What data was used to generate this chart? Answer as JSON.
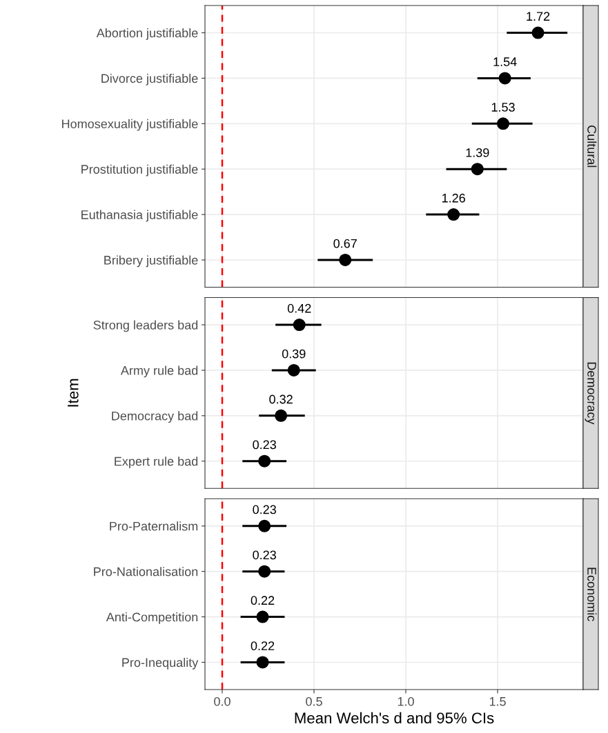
{
  "chart_data": [
    {
      "type": "scatter",
      "title": "Cultural",
      "orientation": "horizontal",
      "categories": [
        "Abortion justifiable",
        "Divorce justifiable",
        "Homosexuality justifiable",
        "Prostitution justifiable",
        "Euthanasia justifiable",
        "Bribery justifiable"
      ],
      "values": [
        1.72,
        1.54,
        1.53,
        1.39,
        1.26,
        0.67
      ],
      "errors": [
        [
          1.55,
          1.88
        ],
        [
          1.39,
          1.68
        ],
        [
          1.36,
          1.69
        ],
        [
          1.22,
          1.55
        ],
        [
          1.11,
          1.4
        ],
        [
          0.52,
          0.82
        ]
      ],
      "colors": [
        "#000000",
        "#000000",
        "#000000",
        "#000000",
        "#000000",
        "#000000"
      ],
      "data_labels": true,
      "marker": "circle",
      "xlim": [
        -0.094,
        1.966
      ],
      "tick_labels": "y",
      "grid": true,
      "ref_lines": [
        {
          "axis": "x",
          "value": 0,
          "color": "#ff0000",
          "line_style": "dashed"
        }
      ]
    },
    {
      "type": "scatter",
      "title": "Democracy",
      "ylabel": "Item",
      "orientation": "horizontal",
      "categories": [
        "Strong leaders bad",
        "Army rule bad",
        "Democracy bad",
        "Expert rule bad"
      ],
      "values": [
        0.42,
        0.39,
        0.32,
        0.23
      ],
      "errors": [
        [
          0.29,
          0.54
        ],
        [
          0.27,
          0.51
        ],
        [
          0.2,
          0.45
        ],
        [
          0.11,
          0.35
        ]
      ],
      "colors": [
        "#000000",
        "#000000",
        "#000000",
        "#000000"
      ],
      "data_labels": true,
      "marker": "circle",
      "xlim": [
        -0.094,
        1.966
      ],
      "tick_labels": "y",
      "grid": true,
      "ref_lines": [
        {
          "axis": "x",
          "value": 0,
          "color": "#ff0000",
          "line_style": "dashed"
        }
      ]
    },
    {
      "type": "scatter",
      "title": "Economic",
      "xlabel": "Mean Welch's d and 95% CIs",
      "orientation": "horizontal",
      "categories": [
        "Pro-Paternalism",
        "Pro-Nationalisation",
        "Anti-Competition",
        "Pro-Inequality"
      ],
      "values": [
        0.23,
        0.23,
        0.22,
        0.22
      ],
      "errors": [
        [
          0.11,
          0.35
        ],
        [
          0.11,
          0.34
        ],
        [
          0.1,
          0.34
        ],
        [
          0.1,
          0.34
        ]
      ],
      "colors": [
        "#000000",
        "#000000",
        "#000000",
        "#000000"
      ],
      "data_labels": true,
      "marker": "circle",
      "xlim": [
        -0.094,
        1.966
      ],
      "xticks": [
        {
          "value": 0,
          "label": "0.0"
        },
        0.5,
        {
          "value": 1,
          "label": "1.0"
        },
        1.5
      ],
      "grid": true,
      "ref_lines": [
        {
          "axis": "x",
          "value": 0,
          "color": "#ff0000",
          "line_style": "dashed"
        }
      ]
    }
  ]
}
